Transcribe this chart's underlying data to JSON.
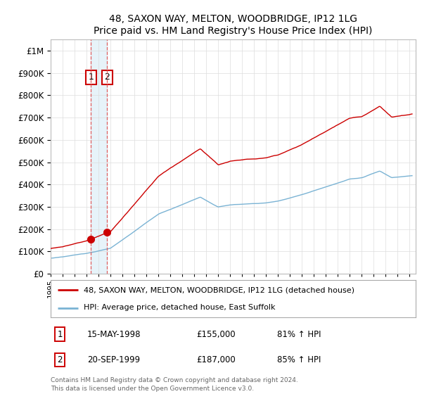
{
  "title": "48, SAXON WAY, MELTON, WOODBRIDGE, IP12 1LG",
  "subtitle": "Price paid vs. HM Land Registry's House Price Index (HPI)",
  "legend_line1": "48, SAXON WAY, MELTON, WOODBRIDGE, IP12 1LG (detached house)",
  "legend_line2": "HPI: Average price, detached house, East Suffolk",
  "sale1_label": "1",
  "sale1_date": "15-MAY-1998",
  "sale1_price": "£155,000",
  "sale1_hpi": "81% ↑ HPI",
  "sale1_year": 1998.37,
  "sale1_value": 155000,
  "sale2_label": "2",
  "sale2_date": "20-SEP-1999",
  "sale2_price": "£187,000",
  "sale2_hpi": "85% ↑ HPI",
  "sale2_year": 1999.72,
  "sale2_value": 187000,
  "footer": "Contains HM Land Registry data © Crown copyright and database right 2024.\nThis data is licensed under the Open Government Licence v3.0.",
  "hpi_color": "#7ab3d4",
  "price_color": "#cc0000",
  "marker_color": "#cc0000",
  "background_color": "#ffffff",
  "grid_color": "#dddddd",
  "ylim_min": 0,
  "ylim_max": 1050000,
  "xmin": 1995.0,
  "xmax": 2025.5,
  "shade_color": "#d0e8f5"
}
